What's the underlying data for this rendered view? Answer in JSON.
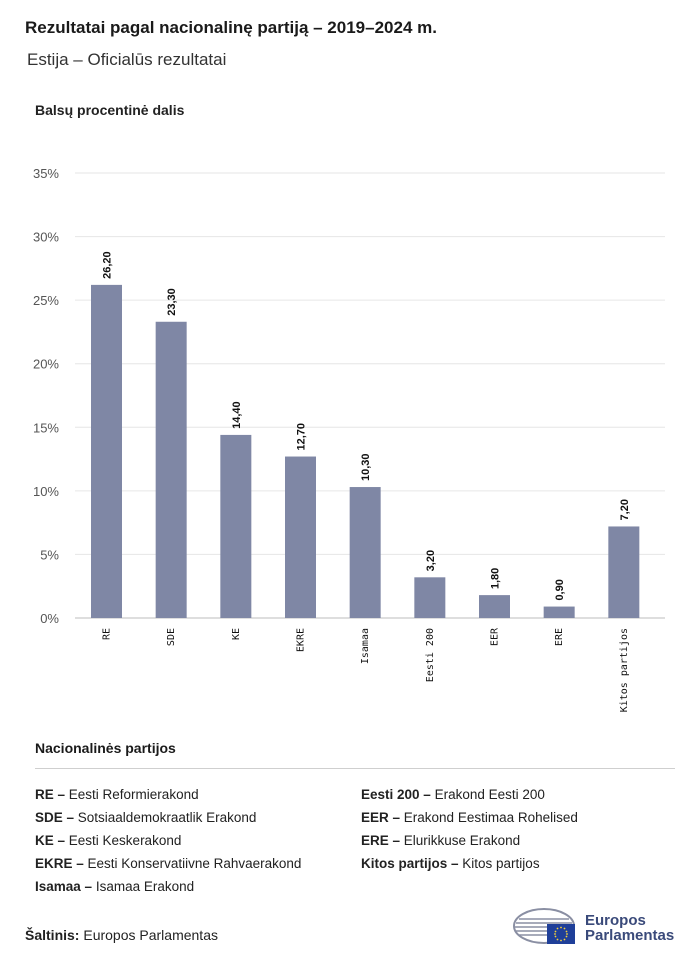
{
  "header": {
    "title": "Rezultatai pagal nacionalinę partiją – 2019–2024 m.",
    "subtitle": "Estija – Oficialūs rezultatai"
  },
  "chart_data": {
    "type": "bar",
    "ylabel": "Balsų procentinė dalis",
    "ylim": [
      0,
      35
    ],
    "yticks": [
      "0%",
      "5%",
      "10%",
      "15%",
      "20%",
      "25%",
      "30%",
      "35%"
    ],
    "ytick_values": [
      0,
      5,
      10,
      15,
      20,
      25,
      30,
      35
    ],
    "categories": [
      "RE",
      "SDE",
      "KE",
      "EKRE",
      "Isamaa",
      "Eesti 200",
      "EER",
      "ERE",
      "Kitos partijos"
    ],
    "values": [
      26.2,
      23.3,
      14.4,
      12.7,
      10.3,
      3.2,
      1.8,
      0.9,
      7.2
    ],
    "value_labels": [
      "26,20",
      "23,30",
      "14,40",
      "12,70",
      "10,30",
      "3,20",
      "1,80",
      "0,90",
      "7,20"
    ],
    "bar_color": "#7f87a5",
    "grid": true
  },
  "legend": {
    "title": "Nacionalinės partijos",
    "items": [
      {
        "abbr": "RE",
        "name": "Eesti Reformierakond"
      },
      {
        "abbr": "SDE",
        "name": "Sotsiaaldemokraatlik Erakond"
      },
      {
        "abbr": "KE",
        "name": "Eesti Keskerakond"
      },
      {
        "abbr": "EKRE",
        "name": "Eesti Konservatiivne Rahvaerakond"
      },
      {
        "abbr": "Isamaa",
        "name": "Isamaa Erakond"
      },
      {
        "abbr": "Eesti 200",
        "name": "Erakond Eesti 200"
      },
      {
        "abbr": "EER",
        "name": "Erakond Eestimaa Rohelised"
      },
      {
        "abbr": "ERE",
        "name": "Elurikkuse Erakond"
      },
      {
        "abbr": "Kitos partijos",
        "name": "Kitos partijos"
      }
    ]
  },
  "footer": {
    "source_label": "Šaltinis:",
    "source_value": "Europos Parlamentas",
    "logo_line1": "Europos",
    "logo_line2": "Parlamentas"
  }
}
